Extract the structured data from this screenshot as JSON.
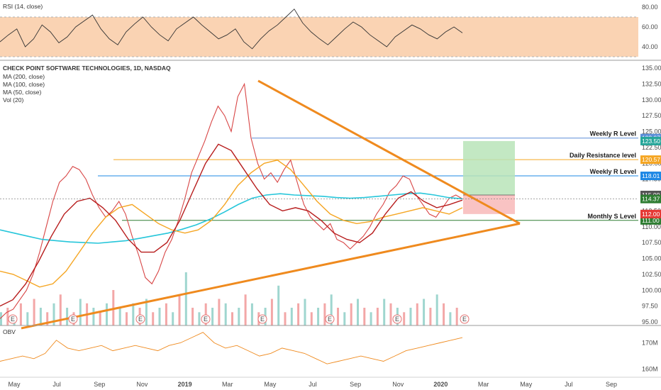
{
  "chart_data": {
    "type": "line",
    "title": "CHECK POINT SOFTWARE TECHNOLOGIES, 1D, NASDAQ",
    "price_axis": {
      "ylim": [
        94.0,
        136.0
      ],
      "ticks": [
        "135.00",
        "132.50",
        "130.00",
        "127.50",
        "125.00",
        "122.50",
        "120.00",
        "117.50",
        "115.00",
        "112.50",
        "110.00",
        "107.50",
        "105.00",
        "102.50",
        "100.00",
        "97.50",
        "95.00"
      ]
    },
    "time_axis": {
      "labels": [
        "May",
        "Jul",
        "Sep",
        "Nov",
        "2019",
        "Mar",
        "May",
        "Jul",
        "Sep",
        "Nov",
        "2020",
        "Mar",
        "May",
        "Jul",
        "Sep"
      ]
    },
    "indicators_legend": [
      "MA (200, close)",
      "MA (100, close)",
      "MA (50, close)",
      "Vol (20)"
    ],
    "rsi": {
      "label": "RSI (14, close)",
      "ylim": [
        30,
        85
      ],
      "ticks": [
        "80.00",
        "60.00",
        "40.00"
      ],
      "band": [
        30,
        70
      ],
      "values": [
        45,
        52,
        58,
        40,
        48,
        62,
        55,
        44,
        50,
        60,
        66,
        72,
        58,
        48,
        42,
        55,
        63,
        70,
        60,
        52,
        46,
        58,
        64,
        70,
        62,
        55,
        48,
        52,
        58,
        45,
        38,
        48,
        56,
        62,
        70,
        78,
        64,
        55,
        48,
        42,
        50,
        58,
        65,
        60,
        52,
        46,
        40,
        50,
        56,
        62,
        58,
        52,
        48,
        55,
        60,
        54
      ]
    },
    "price": {
      "values": [
        95.5,
        96.5,
        97.0,
        98.5,
        100.0,
        102.5,
        106.0,
        110.0,
        114.0,
        117.0,
        118.0,
        119.5,
        119.0,
        117.5,
        115.0,
        113.0,
        111.5,
        112.5,
        114.0,
        112.0,
        108.5,
        105.5,
        102.0,
        101.0,
        103.0,
        106.0,
        108.0,
        111.0,
        114.5,
        118.5,
        121.0,
        123.5,
        126.5,
        129.0,
        127.5,
        125.0,
        130.5,
        132.5,
        124.0,
        120.0,
        117.5,
        118.5,
        117.0,
        119.0,
        120.5,
        117.0,
        113.5,
        111.5,
        110.5,
        109.5,
        110.5,
        108.0,
        107.5,
        106.5,
        107.5,
        108.5,
        110.0,
        112.0,
        113.5,
        115.5,
        116.5,
        118.0,
        117.5,
        115.0,
        113.5,
        112.0,
        111.5,
        113.0,
        114.5,
        115.0,
        114.4
      ],
      "color": "#ef5350"
    },
    "ma_200": {
      "name": "MA (200, close)",
      "color": "#26c6da",
      "values": [
        109.5,
        109.0,
        108.5,
        108.0,
        107.8,
        107.6,
        107.5,
        107.4,
        107.6,
        107.8,
        108.2,
        108.6,
        109.0,
        109.6,
        110.3,
        111.2,
        112.3,
        113.5,
        114.5,
        115.0,
        115.2,
        115.0,
        114.9,
        114.8,
        114.6,
        114.5,
        114.6,
        114.8,
        115.0,
        115.2,
        115.3,
        115.0,
        114.6,
        114.4
      ]
    },
    "ma_100": {
      "name": "MA (100, close)",
      "color": "#f5a623",
      "values": [
        103.0,
        102.5,
        101.5,
        100.5,
        101.0,
        103.0,
        106.0,
        109.0,
        111.5,
        113.0,
        113.5,
        112.0,
        110.5,
        109.5,
        109.0,
        109.5,
        111.0,
        113.5,
        116.5,
        118.5,
        120.0,
        120.5,
        119.0,
        116.5,
        114.0,
        112.0,
        111.0,
        110.5,
        110.8,
        111.5,
        112.0,
        112.5,
        113.0,
        112.5,
        112.0,
        113.0
      ]
    },
    "ma_50": {
      "name": "MA (50, close)",
      "color": "#b71c1c",
      "values": [
        97.5,
        98.5,
        101.0,
        104.5,
        108.5,
        112.0,
        114.0,
        114.5,
        113.0,
        111.0,
        108.0,
        106.0,
        106.0,
        107.5,
        111.0,
        115.5,
        120.0,
        123.0,
        122.0,
        119.0,
        116.0,
        113.5,
        112.5,
        113.0,
        112.5,
        111.0,
        109.0,
        108.0,
        107.5,
        109.0,
        112.0,
        114.5,
        115.5,
        114.0,
        113.0,
        113.5,
        114.2
      ]
    },
    "volume": {
      "name": "Vol (20)",
      "values": [
        3,
        4,
        2,
        5,
        3,
        6,
        4,
        3,
        5,
        7,
        4,
        3,
        6,
        5,
        4,
        3,
        5,
        8,
        4,
        3,
        5,
        4,
        6,
        3,
        4,
        5,
        3,
        7,
        12,
        4,
        3,
        5,
        4,
        6,
        5,
        3,
        4,
        7,
        5,
        3,
        4,
        6,
        9,
        3,
        4,
        5,
        6,
        3,
        4,
        5,
        7,
        4,
        3,
        5,
        6,
        4,
        3,
        4,
        6,
        5,
        4,
        3,
        4,
        5,
        6,
        4,
        7,
        5,
        3,
        4
      ]
    },
    "obv": {
      "label": "OBV",
      "ticks": [
        "170M",
        "160M"
      ],
      "values": [
        163,
        164,
        165,
        164,
        166,
        171,
        168,
        167,
        168,
        169,
        167,
        168,
        169,
        168,
        167,
        169,
        170,
        172,
        174,
        170,
        168,
        169,
        167,
        165,
        166,
        168,
        167,
        166,
        164,
        162,
        163,
        164,
        165,
        164,
        163,
        165,
        167,
        168,
        169,
        170,
        171,
        172
      ]
    },
    "levels": [
      {
        "name": "Weekly R Level",
        "value": 123.97,
        "label": "123.97",
        "color": "#5b8ed8"
      },
      {
        "name": "Daily Resistance level",
        "value": 120.57,
        "label": "120.57",
        "color": "#f5a623"
      },
      {
        "name": "Weekly R Level",
        "value": 118.01,
        "label": "118.01",
        "color": "#1e88e5"
      },
      {
        "name": "Monthly S Level",
        "value": 111.0,
        "label": "111.00",
        "color": "#2e7d32"
      }
    ],
    "badges": [
      {
        "label": "123.50",
        "value": 123.5,
        "color": "#26a69a"
      },
      {
        "label": "115.00",
        "value": 115.0,
        "color": "#555555"
      },
      {
        "label": "114.37",
        "value": 114.37,
        "color": "#2e7d32"
      },
      {
        "label": "112.00",
        "value": 112.0,
        "color": "#e53935"
      }
    ],
    "position": {
      "target": 123.5,
      "entry": 115.0,
      "stop": 112.0
    },
    "triangle": {
      "apex_price": 110.5,
      "upper_start_price": 133.0,
      "lower_start_price": 94.0
    },
    "earnings_marker": "E"
  }
}
